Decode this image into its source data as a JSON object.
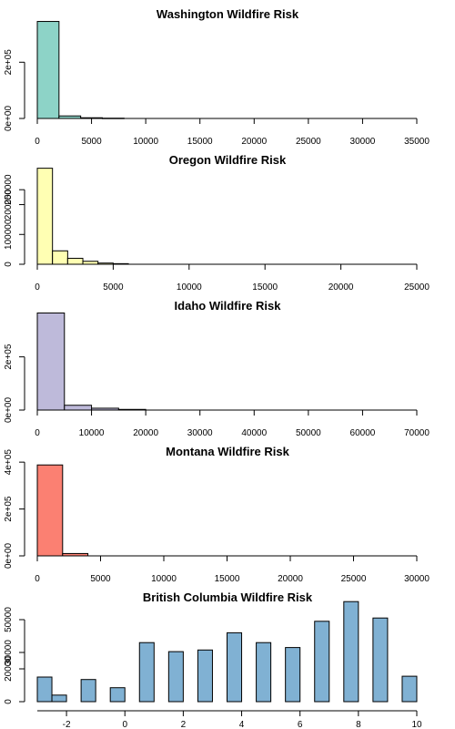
{
  "chart_data": [
    {
      "type": "bar",
      "title": "Washington Wildfire Risk",
      "color": "#8DD3C7",
      "xlim": [
        0,
        35000
      ],
      "ylim": [
        0,
        350000
      ],
      "x_ticks": [
        0,
        5000,
        10000,
        15000,
        20000,
        25000,
        30000,
        35000
      ],
      "x_tick_labels": [
        "0",
        "5000",
        "10000",
        "15000",
        "20000",
        "25000",
        "30000",
        "35000"
      ],
      "y_ticks": [
        0,
        200000
      ],
      "y_tick_labels": [
        "0e+00",
        "2e+05"
      ],
      "bins": [
        [
          0,
          2000
        ],
        [
          2000,
          4000
        ],
        [
          4000,
          6000
        ],
        [
          6000,
          8000
        ]
      ],
      "values": [
        345000,
        9000,
        2500,
        1000
      ]
    },
    {
      "type": "bar",
      "title": "Oregon Wildfire Risk",
      "color": "#FFFFB3",
      "xlim": [
        0,
        25000
      ],
      "ylim": [
        0,
        330000
      ],
      "x_ticks": [
        0,
        5000,
        10000,
        15000,
        20000,
        25000
      ],
      "x_tick_labels": [
        "0",
        "5000",
        "10000",
        "15000",
        "20000",
        "25000"
      ],
      "y_ticks": [
        0,
        100000,
        200000,
        250000
      ],
      "y_tick_labels": [
        "0",
        "100000",
        "200000",
        "250000"
      ],
      "bins": [
        [
          0,
          1000
        ],
        [
          1000,
          2000
        ],
        [
          2000,
          3000
        ],
        [
          3000,
          4000
        ],
        [
          4000,
          5000
        ],
        [
          5000,
          6000
        ]
      ],
      "values": [
        322000,
        45000,
        20000,
        10000,
        4000,
        2000
      ]
    },
    {
      "type": "bar",
      "title": "Idaho Wildfire Risk",
      "color": "#BEBADA",
      "xlim": [
        0,
        70000
      ],
      "ylim": [
        0,
        370000
      ],
      "x_ticks": [
        0,
        10000,
        20000,
        30000,
        40000,
        50000,
        60000,
        70000
      ],
      "x_tick_labels": [
        "0",
        "10000",
        "20000",
        "30000",
        "40000",
        "50000",
        "60000",
        "70000"
      ],
      "y_ticks": [
        0,
        200000
      ],
      "y_tick_labels": [
        "0e+00",
        "2e+05"
      ],
      "bins": [
        [
          0,
          5000
        ],
        [
          5000,
          10000
        ],
        [
          10000,
          15000
        ],
        [
          15000,
          20000
        ]
      ],
      "values": [
        365000,
        18000,
        7000,
        2500
      ]
    },
    {
      "type": "bar",
      "title": "Montana Wildfire Risk",
      "color": "#FB8072",
      "xlim": [
        0,
        30000
      ],
      "ylim": [
        0,
        420000
      ],
      "x_ticks": [
        0,
        5000,
        10000,
        15000,
        20000,
        25000,
        30000
      ],
      "x_tick_labels": [
        "0",
        "5000",
        "10000",
        "15000",
        "20000",
        "25000",
        "30000"
      ],
      "y_ticks": [
        0,
        200000,
        400000
      ],
      "y_tick_labels": [
        "0e+00",
        "2e+05",
        "4e+05"
      ],
      "bins": [
        [
          0,
          2000
        ],
        [
          2000,
          4000
        ]
      ],
      "values": [
        388000,
        10000
      ]
    },
    {
      "type": "bar",
      "title": "British Columbia Wildfire Risk",
      "color": "#80B1D3",
      "xlim": [
        -3,
        10
      ],
      "ylim": [
        0,
        60000
      ],
      "x_ticks": [
        -2,
        0,
        2,
        4,
        6,
        8,
        10
      ],
      "x_tick_labels": [
        "-2",
        "0",
        "2",
        "4",
        "6",
        "8",
        "10"
      ],
      "y_ticks": [
        0,
        20000,
        30000,
        50000
      ],
      "y_tick_labels": [
        "0",
        "20000",
        "30000",
        "50000"
      ],
      "bins": [
        [
          -3,
          -2.5
        ],
        [
          -2.5,
          -2
        ],
        [
          -1.5,
          -1
        ],
        [
          -0.5,
          0
        ],
        [
          0.5,
          1
        ],
        [
          1.5,
          2
        ],
        [
          2.5,
          3
        ],
        [
          3.5,
          4
        ],
        [
          4.5,
          5
        ],
        [
          5.5,
          6
        ],
        [
          6.5,
          7
        ],
        [
          7.5,
          8
        ],
        [
          8.5,
          9
        ],
        [
          9.5,
          10
        ]
      ],
      "values": [
        15000,
        4000,
        13500,
        8500,
        36000,
        30500,
        31500,
        42000,
        36000,
        33000,
        49000,
        61000,
        51000,
        15500
      ]
    }
  ]
}
